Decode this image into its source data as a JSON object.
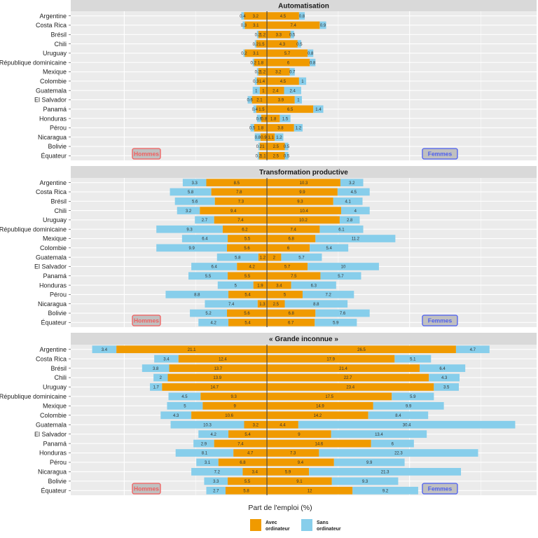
{
  "chart_data": {
    "type": "bar",
    "subtype": "diverging-stacked-horizontal",
    "xlabel": "Part de l'emploi (%)",
    "ylabel": "",
    "categories": [
      "Argentine",
      "Costa Rica",
      "Brésil",
      "Chili",
      "Uruguay",
      "République dominicaine",
      "Mexique",
      "Colombie",
      "Guatemala",
      "El Salvador",
      "Panamá",
      "Honduras",
      "Pérou",
      "Nicaragua",
      "Bolivie",
      "Équateur"
    ],
    "xlim": [
      -27.5,
      37.8
    ],
    "grid": true,
    "center_line": 0,
    "sides": {
      "left": "Hommes",
      "right": "Femmes"
    },
    "side_colors": {
      "left": "#f25c5c",
      "right": "#4a5cf0"
    },
    "legend": {
      "position": "bottom",
      "entries": [
        {
          "name": "Avec\nordinateur",
          "line1": "Avec",
          "line2": "ordinateur",
          "color": "#f09a00"
        },
        {
          "name": "Sans\nordinateur",
          "line1": "Sans",
          "line2": "ordinateur",
          "color": "#87ceeb"
        }
      ]
    },
    "panels": [
      {
        "title": "Automatisation",
        "hommes_avec": [
          3.2,
          3.1,
          1.2,
          1.5,
          3.1,
          1.8,
          1.2,
          1.4,
          1,
          2.1,
          1.5,
          0.8,
          1.8,
          0.9,
          1,
          1.1
        ],
        "hommes_sans": [
          0.4,
          0.3,
          0.2,
          0.2,
          0.2,
          0.2,
          0.2,
          0.3,
          1,
          0.6,
          0.4,
          0.6,
          0.5,
          0.8,
          0.2,
          0.2
        ],
        "femmes_avec": [
          4.5,
          7.4,
          3.3,
          4.3,
          5.7,
          6,
          3.2,
          4.5,
          2.4,
          3.9,
          6.5,
          1.8,
          3.8,
          1.1,
          2.5,
          2.5
        ],
        "femmes_sans": [
          0.8,
          0.9,
          0.5,
          0.5,
          0.8,
          0.8,
          0.7,
          1,
          2.4,
          1,
          1.4,
          1.5,
          1.2,
          1.2,
          0.5,
          0.5
        ]
      },
      {
        "title": "Transformation productive",
        "hommes_avec": [
          8.5,
          7.8,
          7.3,
          9.4,
          7.4,
          6.2,
          5.5,
          5.6,
          1.2,
          4.2,
          5.5,
          1.9,
          5.4,
          1.3,
          5.6,
          5.4
        ],
        "hommes_sans": [
          3.3,
          5.8,
          5.6,
          3.2,
          2.7,
          9.3,
          6.4,
          9.9,
          5.8,
          6.4,
          5.5,
          5,
          8.8,
          7.4,
          5.2,
          4.2
        ],
        "femmes_avec": [
          10.3,
          9.9,
          9.3,
          10.4,
          10.2,
          7.4,
          6.8,
          6,
          2,
          5.7,
          7.5,
          3.4,
          5,
          2.5,
          6.8,
          6.7
        ],
        "femmes_sans": [
          3.2,
          4.5,
          4.1,
          4,
          2.8,
          6.1,
          11.2,
          5.4,
          5.7,
          10,
          5.7,
          6.3,
          7.2,
          8.8,
          7.6,
          5.9
        ]
      },
      {
        "title": "« Grande inconnue »",
        "hommes_avec": [
          21.1,
          12.4,
          13.7,
          13.9,
          14.7,
          9.3,
          9,
          10.6,
          3.2,
          5.4,
          7.4,
          4.7,
          6.8,
          3.4,
          5.5,
          5.8
        ],
        "hommes_sans": [
          3.4,
          3.4,
          3.8,
          2,
          1.7,
          4.5,
          5,
          4.3,
          10.3,
          4.2,
          2.9,
          8.1,
          3.1,
          7.2,
          3.3,
          2.7
        ],
        "femmes_avec": [
          26.5,
          17.9,
          21.4,
          22.7,
          23.4,
          17.5,
          14.9,
          14.2,
          4.4,
          9,
          14.6,
          7.3,
          9.4,
          5.9,
          9.1,
          12
        ],
        "femmes_sans": [
          4.7,
          5.1,
          6.4,
          4.3,
          3.5,
          5.9,
          9.9,
          8.4,
          30.4,
          13.4,
          6,
          22.3,
          9.9,
          21.3,
          9.3,
          9.2
        ]
      }
    ]
  }
}
